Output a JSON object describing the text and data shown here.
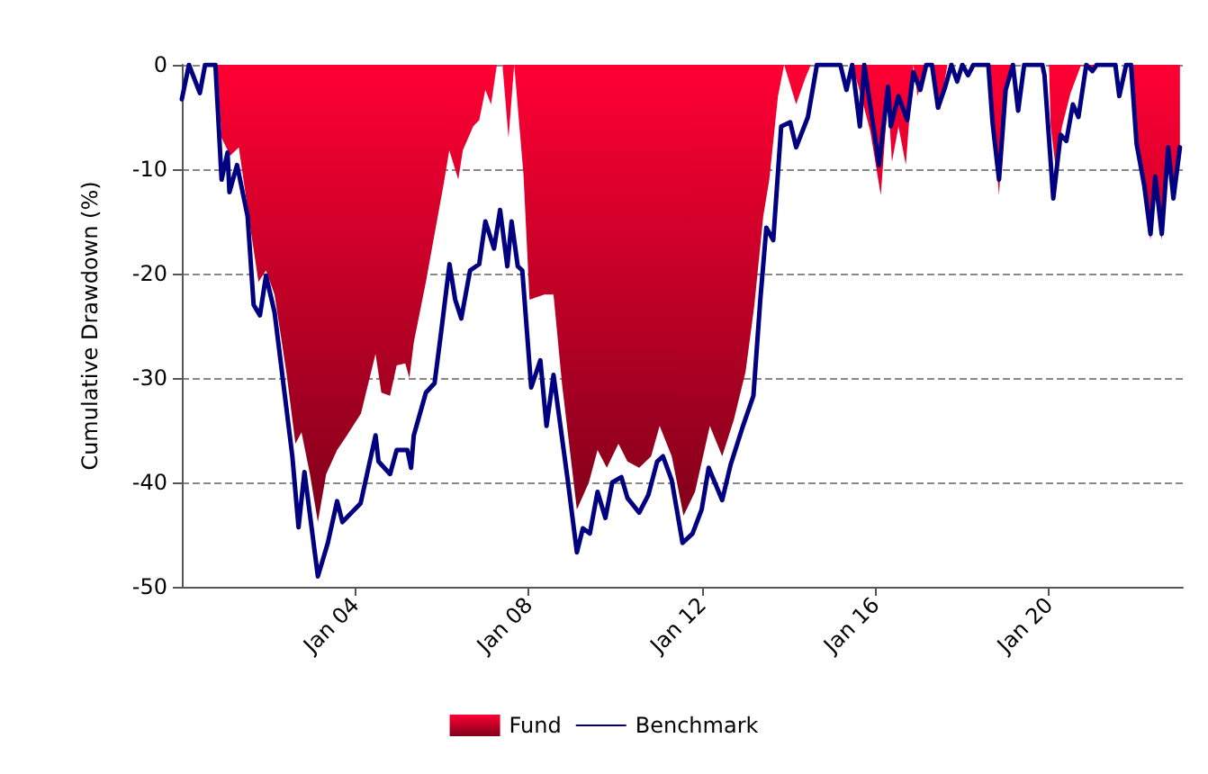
{
  "chart_data": {
    "type": "area",
    "ylabel": "Cumulative Drawdown (%)",
    "xlim": [
      "2000-01-01",
      "2023-02-01"
    ],
    "ylim": [
      -50,
      0
    ],
    "yticks": [
      -50,
      -40,
      -30,
      -20,
      -10,
      0
    ],
    "xticks": [
      {
        "value": "2004-01-01",
        "label": "Jan 04"
      },
      {
        "value": "2008-01-01",
        "label": "Jan 08"
      },
      {
        "value": "2012-01-01",
        "label": "Jan 12"
      },
      {
        "value": "2016-01-01",
        "label": "Jan 16"
      },
      {
        "value": "2020-01-01",
        "label": "Jan 20"
      }
    ],
    "grid": "y",
    "legend": "bottom",
    "marker": "none",
    "series": [
      {
        "name": "Fund",
        "color": "#ff0033",
        "x": [
          "2000-01-01",
          "2000-10-25",
          "2000-12-01",
          "2001-02-12",
          "2001-04-25",
          "2001-08-08",
          "2001-10-08",
          "2001-12-10",
          "2002-02-20",
          "2002-05-30",
          "2002-08-15",
          "2002-10-05",
          "2002-12-15",
          "2003-02-20",
          "2003-05-01",
          "2003-08-01",
          "2003-10-12",
          "2004-02-18",
          "2004-05-01",
          "2004-06-20",
          "2004-08-08",
          "2004-10-20",
          "2004-12-15",
          "2005-02-25",
          "2005-04-01",
          "2005-05-08",
          "2005-08-18",
          "2005-10-30",
          "2006-01-12",
          "2006-03-03",
          "2006-05-18",
          "2006-06-25",
          "2006-09-20",
          "2006-11-10",
          "2007-01-01",
          "2007-02-18",
          "2007-04-08",
          "2007-05-25",
          "2007-07-15",
          "2007-09-01",
          "2007-11-18",
          "2008-01-08",
          "2008-05-12",
          "2008-07-28",
          "2008-10-08",
          "2009-02-10",
          "2009-05-22",
          "2009-08-03",
          "2009-10-20",
          "2010-01-26",
          "2010-04-12",
          "2010-07-20",
          "2010-10-28",
          "2011-01-08",
          "2011-04-20",
          "2011-07-28",
          "2011-11-02",
          "2012-03-06",
          "2012-06-18",
          "2012-09-24",
          "2013-01-01",
          "2013-03-15",
          "2013-05-30",
          "2013-07-20",
          "2013-10-01",
          "2013-11-22",
          "2014-03-03",
          "2014-05-15",
          "2014-07-05",
          "2015-06-18",
          "2015-09-01",
          "2015-11-18",
          "2016-02-14",
          "2016-04-15",
          "2016-05-18",
          "2016-07-12",
          "2016-09-12",
          "2016-11-14",
          "2016-12-20",
          "2017-03-03",
          "2017-04-20",
          "2017-06-25",
          "2017-08-28",
          "2018-08-08",
          "2018-09-13",
          "2018-11-06",
          "2019-01-01",
          "2019-03-03",
          "2020-01-01",
          "2020-01-15",
          "2020-02-24",
          "2020-04-20",
          "2020-07-01",
          "2020-09-28",
          "2021-01-01",
          "2021-02-06",
          "2021-11-22",
          "2022-01-08",
          "2022-03-14",
          "2022-05-05",
          "2022-06-14",
          "2022-08-08",
          "2022-10-01",
          "2022-11-14",
          "2023-01-08"
        ],
        "values": [
          0,
          0,
          -7,
          -8.7,
          -7.9,
          -16.2,
          -20.8,
          -19.7,
          -22,
          -29.4,
          -36.3,
          -35.2,
          -39.2,
          -43.8,
          -39.2,
          -36.9,
          -35.7,
          -33.4,
          -30,
          -27.7,
          -31.4,
          -31.7,
          -28.8,
          -28.6,
          -30,
          -26.6,
          -20.8,
          -16.2,
          -11.6,
          -8.2,
          -11,
          -8.2,
          -5.9,
          -5.3,
          -2.4,
          -3.8,
          0,
          0,
          -7,
          0,
          -10.5,
          -22.5,
          -22,
          -22,
          -30.6,
          -42.6,
          -40,
          -36.9,
          -38.6,
          -36.3,
          -38,
          -38.6,
          -37.5,
          -34.6,
          -37.5,
          -43.2,
          -40.9,
          -34.6,
          -37.5,
          -34,
          -29.4,
          -23.1,
          -14.5,
          -11,
          -3,
          0,
          -3.8,
          -1.4,
          0,
          0,
          -3,
          -6.4,
          -12.5,
          -3,
          -9.3,
          -5.9,
          -9.6,
          0,
          -3,
          0,
          0,
          -4.4,
          0,
          0,
          -5,
          -12.5,
          -1.7,
          0,
          0,
          -5.9,
          -9.6,
          -5.9,
          -2.7,
          0,
          -0.5,
          0,
          0,
          -7,
          -11.5,
          -16.8,
          -11,
          -16.8,
          -7.6,
          -11.6,
          -7.9
        ]
      },
      {
        "name": "Benchmark",
        "type": "line",
        "color": "#000080",
        "x": [
          "2000-01-01",
          "2000-03-01",
          "2000-06-01",
          "2000-07-15",
          "2000-10-10",
          "2000-12-01",
          "2001-01-20",
          "2001-02-05",
          "2001-04-10",
          "2001-07-08",
          "2001-08-28",
          "2001-10-20",
          "2001-12-10",
          "2002-02-20",
          "2002-07-20",
          "2002-09-10",
          "2002-10-30",
          "2003-02-20",
          "2003-05-15",
          "2003-08-01",
          "2003-09-15",
          "2004-02-15",
          "2004-06-20",
          "2004-07-15",
          "2004-10-20",
          "2004-12-15",
          "2005-03-15",
          "2005-04-15",
          "2005-05-08",
          "2005-08-18",
          "2005-10-30",
          "2005-12-20",
          "2006-03-05",
          "2006-04-22",
          "2006-06-12",
          "2006-08-25",
          "2006-11-10",
          "2007-01-01",
          "2007-03-15",
          "2007-05-05",
          "2007-07-05",
          "2007-08-10",
          "2007-10-01",
          "2007-11-08",
          "2008-01-22",
          "2008-04-08",
          "2008-05-30",
          "2008-07-28",
          "2008-11-25",
          "2009-02-10",
          "2009-04-01",
          "2009-05-30",
          "2009-08-03",
          "2009-10-08",
          "2009-12-05",
          "2010-02-20",
          "2010-04-12",
          "2010-07-20",
          "2010-10-05",
          "2010-12-18",
          "2011-02-05",
          "2011-04-20",
          "2011-07-20",
          "2011-10-12",
          "2011-12-28",
          "2012-02-25",
          "2012-06-18",
          "2012-08-28",
          "2012-12-10",
          "2013-03-08",
          "2013-05-05",
          "2013-06-25",
          "2013-08-22",
          "2013-10-28",
          "2014-01-12",
          "2014-03-03",
          "2014-06-10",
          "2014-08-25",
          "2015-03-10",
          "2015-05-01",
          "2015-06-18",
          "2015-08-22",
          "2015-09-28",
          "2016-01-30",
          "2016-04-15",
          "2016-05-08",
          "2016-07-12",
          "2016-09-24",
          "2016-11-14",
          "2017-01-12",
          "2017-03-03",
          "2017-04-20",
          "2017-06-10",
          "2017-08-10",
          "2017-10-01",
          "2017-11-18",
          "2018-01-01",
          "2018-02-18",
          "2018-04-05",
          "2018-08-08",
          "2018-09-13",
          "2018-11-06",
          "2019-01-01",
          "2019-03-03",
          "2019-04-16",
          "2019-06-06",
          "2019-11-06",
          "2019-11-24",
          "2020-02-06",
          "2020-04-08",
          "2020-05-26",
          "2020-07-20",
          "2020-09-05",
          "2020-11-10",
          "2021-01-01",
          "2021-02-06",
          "2021-07-13",
          "2021-08-15",
          "2021-10-12",
          "2021-11-22",
          "2022-01-08",
          "2022-03-14",
          "2022-05-05",
          "2022-06-14",
          "2022-08-08",
          "2022-10-01",
          "2022-11-14",
          "2023-01-08"
        ],
        "values": [
          -3.3,
          0,
          -2.7,
          0,
          0,
          -11,
          -8.4,
          -12.2,
          -9.6,
          -14.5,
          -23,
          -24,
          -20.2,
          -23.7,
          -37.5,
          -44.3,
          -39,
          -49,
          -45.8,
          -41.8,
          -43.8,
          -42,
          -35.5,
          -38,
          -39.2,
          -36.9,
          -36.9,
          -38.6,
          -35.5,
          -31.4,
          -30.5,
          -26,
          -19.1,
          -22.5,
          -24.3,
          -19.7,
          -19.1,
          -15,
          -17.6,
          -13.9,
          -19.3,
          -15,
          -19.3,
          -19.7,
          -30.9,
          -28.3,
          -34.6,
          -29.7,
          -39.8,
          -46.7,
          -44.4,
          -44.9,
          -40.9,
          -43.4,
          -40,
          -39.5,
          -41.5,
          -42.9,
          -41.2,
          -38,
          -37.5,
          -39.8,
          -45.8,
          -44.9,
          -42.6,
          -38.6,
          -41.7,
          -38.3,
          -34.6,
          -31.7,
          -22.5,
          -15.6,
          -16.8,
          -5.9,
          -5.5,
          -7.9,
          -5,
          0,
          0,
          -2.4,
          0,
          -5.9,
          0,
          -9.6,
          -2.1,
          -5.9,
          -3,
          -5.3,
          -0.7,
          -2.4,
          0,
          0,
          -4.1,
          -2.1,
          0,
          -1.6,
          0,
          -1,
          0,
          0,
          -5.6,
          -11,
          -2.4,
          0,
          -4.4,
          0,
          0,
          -1,
          -12.8,
          -6.7,
          -7.3,
          -3.8,
          -5,
          0,
          -0.6,
          0,
          0,
          -3,
          0,
          0,
          -7.6,
          -11.6,
          -16.2,
          -10.7,
          -16.2,
          -7.9,
          -12.8,
          -7.9
        ]
      }
    ]
  }
}
